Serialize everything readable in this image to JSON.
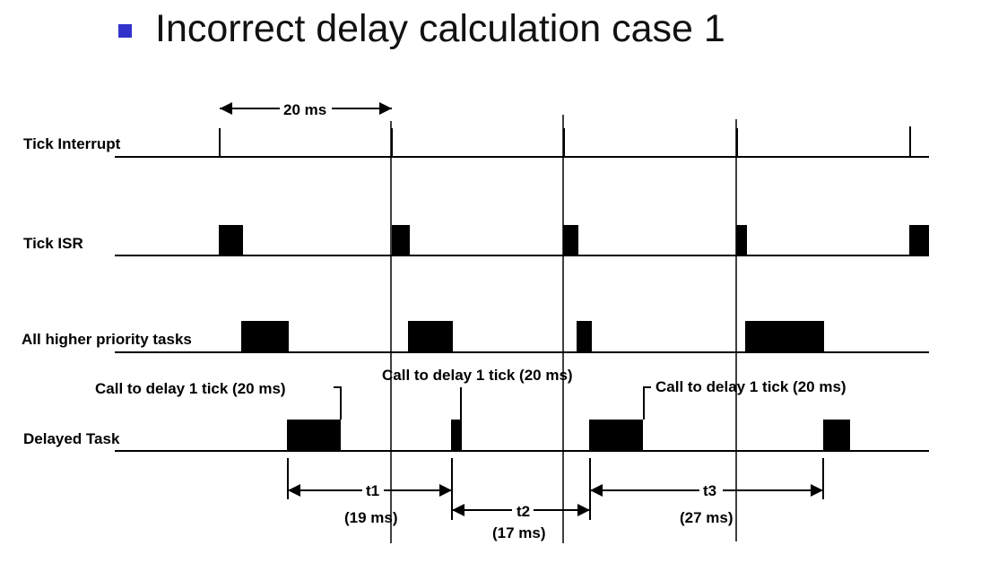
{
  "slide": {
    "title": "Incorrect delay calculation case 1",
    "bullet_color": "#3333cc"
  },
  "diagram": {
    "rows": [
      {
        "id": "tick-interrupt",
        "label": "Tick Interrupt"
      },
      {
        "id": "tick-isr",
        "label": "Tick ISR"
      },
      {
        "id": "higher-priority",
        "label": "All higher priority tasks"
      },
      {
        "id": "delayed-task",
        "label": "Delayed Task"
      }
    ],
    "period_label": "20 ms",
    "calls": [
      "Call to delay 1 tick (20 ms)",
      "Call to delay 1 tick (20 ms)",
      "Call to delay 1 tick (20 ms)"
    ],
    "intervals": [
      {
        "name": "t1",
        "value": "(19 ms)"
      },
      {
        "name": "t2",
        "value": "(17 ms)"
      },
      {
        "name": "t3",
        "value": "(27 ms)"
      }
    ]
  }
}
